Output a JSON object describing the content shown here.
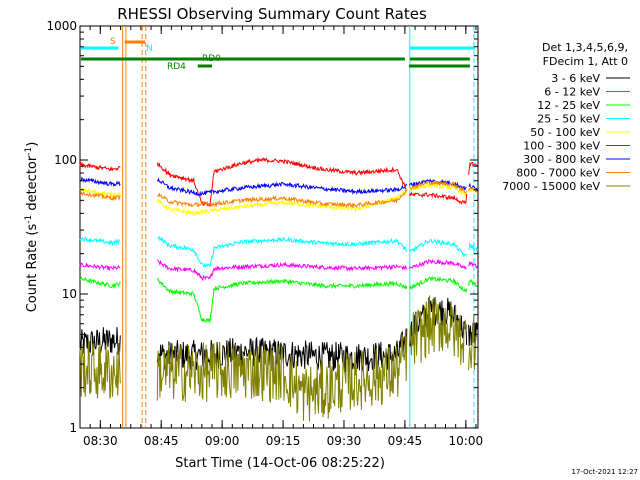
{
  "chart_data": {
    "type": "line",
    "title": "RHESSI Observing Summary Count Rates",
    "xlabel": "Start Time (14-Oct-06 08:25:22)",
    "ylabel_main": "Count Rate (s",
    "ylabel_sup": "-1",
    "ylabel_tail": " detector",
    "ylabel_end": ")",
    "yscale": "log",
    "ylim": [
      1,
      1000
    ],
    "xlim_minutes": [
      0,
      98
    ],
    "y_ticks": [
      {
        "value": 1,
        "label": "1"
      },
      {
        "value": 10,
        "label": "10"
      },
      {
        "value": 100,
        "label": "100"
      },
      {
        "value": 1000,
        "label": "1000"
      }
    ],
    "x_ticks": [
      {
        "minutes": 5,
        "label": "08:30"
      },
      {
        "minutes": 20,
        "label": "08:45"
      },
      {
        "minutes": 35,
        "label": "09:00"
      },
      {
        "minutes": 50,
        "label": "09:15"
      },
      {
        "minutes": 65,
        "label": "09:30"
      },
      {
        "minutes": 80,
        "label": "09:45"
      },
      {
        "minutes": 95,
        "label": "10:00"
      }
    ],
    "legend_header": [
      "Det 1,3,4,5,6,9,",
      "FDecim 1, Att 0"
    ],
    "legend_position": "right",
    "series": [
      {
        "name": "3 - 6 keV",
        "color": "#000000",
        "values": [
          [
            0,
            4.2
          ],
          [
            8,
            4.5
          ],
          [
            10,
            4.5
          ],
          [
            18,
            4.8
          ],
          [
            19,
            4.0
          ],
          [
            20,
            3.5
          ],
          [
            30,
            3.5
          ],
          [
            40,
            3.7
          ],
          [
            50,
            3.6
          ],
          [
            60,
            3.4
          ],
          [
            70,
            3.4
          ],
          [
            78,
            3.5
          ],
          [
            82,
            5.5
          ],
          [
            86,
            7.5
          ],
          [
            90,
            7.5
          ],
          [
            93,
            6.5
          ],
          [
            95,
            5.0
          ],
          [
            98,
            5.0
          ]
        ]
      },
      {
        "name": "6 - 12 keV",
        "color": "#ff00ff",
        "values": [
          [
            0,
            16.5
          ],
          [
            8,
            15.5
          ],
          [
            10,
            15.8
          ],
          [
            18,
            19.0
          ],
          [
            19,
            17.5
          ],
          [
            22,
            15.5
          ],
          [
            28,
            15.0
          ],
          [
            30,
            13.2
          ],
          [
            32,
            13.0
          ],
          [
            33,
            15.5
          ],
          [
            40,
            16.0
          ],
          [
            50,
            16.5
          ],
          [
            60,
            15.8
          ],
          [
            68,
            15.5
          ],
          [
            78,
            16.0
          ],
          [
            81,
            15.5
          ],
          [
            86,
            17.5
          ],
          [
            92,
            17.0
          ],
          [
            95,
            15.5
          ],
          [
            96,
            17.0
          ],
          [
            98,
            16.0
          ]
        ]
      },
      {
        "name": "12 - 25 keV",
        "color": "#00ff00",
        "values": [
          [
            0,
            13.0
          ],
          [
            8,
            11.5
          ],
          [
            10,
            12.0
          ],
          [
            18,
            15.0
          ],
          [
            19,
            13.0
          ],
          [
            22,
            10.5
          ],
          [
            28,
            10.0
          ],
          [
            30,
            6.5
          ],
          [
            32,
            6.3
          ],
          [
            33,
            11.0
          ],
          [
            40,
            12.0
          ],
          [
            50,
            12.5
          ],
          [
            60,
            11.5
          ],
          [
            68,
            11.5
          ],
          [
            78,
            12.0
          ],
          [
            81,
            11.0
          ],
          [
            86,
            13.0
          ],
          [
            92,
            12.5
          ],
          [
            95,
            10.5
          ],
          [
            96,
            12.5
          ],
          [
            98,
            11.5
          ]
        ]
      },
      {
        "name": "25 - 50 keV",
        "color": "#00ffff",
        "values": [
          [
            0,
            26.0
          ],
          [
            8,
            24.0
          ],
          [
            10,
            25.0
          ],
          [
            18,
            31.0
          ],
          [
            19,
            27.0
          ],
          [
            22,
            23.0
          ],
          [
            28,
            21.5
          ],
          [
            30,
            16.5
          ],
          [
            32,
            16.0
          ],
          [
            33,
            22.0
          ],
          [
            40,
            24.5
          ],
          [
            50,
            25.5
          ],
          [
            60,
            24.0
          ],
          [
            68,
            23.5
          ],
          [
            78,
            25.0
          ],
          [
            81,
            20.5
          ],
          [
            86,
            25.0
          ],
          [
            92,
            23.5
          ],
          [
            95,
            19.0
          ],
          [
            96,
            23.0
          ],
          [
            98,
            21.0
          ]
        ]
      },
      {
        "name": "50 - 100 keV",
        "color": "#ffff00",
        "values": [
          [
            0,
            60.0
          ],
          [
            8,
            55.0
          ],
          [
            10,
            56.0
          ],
          [
            18,
            75.0
          ],
          [
            19,
            50.0
          ],
          [
            22,
            43.0
          ],
          [
            28,
            40.0
          ],
          [
            30,
            41.0
          ],
          [
            33,
            42.0
          ],
          [
            40,
            45.0
          ],
          [
            50,
            48.0
          ],
          [
            60,
            45.0
          ],
          [
            68,
            43.0
          ],
          [
            78,
            52.0
          ],
          [
            81,
            60.0
          ],
          [
            86,
            65.0
          ],
          [
            92,
            62.0
          ],
          [
            95,
            55.0
          ],
          [
            96,
            60.0
          ],
          [
            98,
            57.0
          ]
        ]
      },
      {
        "name": "100 - 300 keV",
        "color": "#ff0000",
        "values": [
          [
            0,
            92.0
          ],
          [
            8,
            85.0
          ],
          [
            10,
            88.0
          ],
          [
            18,
            130.0
          ],
          [
            19,
            95.0
          ],
          [
            22,
            78.0
          ],
          [
            28,
            70.0
          ],
          [
            30,
            47.0
          ],
          [
            32,
            46.0
          ],
          [
            33,
            82.0
          ],
          [
            40,
            95.0
          ],
          [
            45,
            100.0
          ],
          [
            50,
            98.0
          ],
          [
            60,
            85.0
          ],
          [
            68,
            80.0
          ],
          [
            78,
            85.0
          ],
          [
            81,
            55.0
          ],
          [
            86,
            55.0
          ],
          [
            92,
            52.0
          ],
          [
            95,
            47.0
          ],
          [
            96,
            95.0
          ],
          [
            98,
            90.0
          ]
        ]
      },
      {
        "name": "300 - 800 keV",
        "color": "#0000ff",
        "values": [
          [
            0,
            72.0
          ],
          [
            8,
            66.0
          ],
          [
            10,
            67.0
          ],
          [
            18,
            85.0
          ],
          [
            19,
            72.0
          ],
          [
            22,
            62.0
          ],
          [
            28,
            57.0
          ],
          [
            30,
            56.0
          ],
          [
            33,
            58.0
          ],
          [
            40,
            62.0
          ],
          [
            50,
            66.0
          ],
          [
            60,
            61.0
          ],
          [
            68,
            58.0
          ],
          [
            78,
            60.0
          ],
          [
            81,
            65.0
          ],
          [
            86,
            70.0
          ],
          [
            92,
            67.0
          ],
          [
            95,
            61.0
          ],
          [
            96,
            64.0
          ],
          [
            98,
            60.0
          ]
        ]
      },
      {
        "name": "800 - 7000 keV",
        "color": "#ff8000",
        "values": [
          [
            0,
            57.0
          ],
          [
            8,
            52.0
          ],
          [
            10,
            53.0
          ],
          [
            18,
            65.0
          ],
          [
            19,
            56.0
          ],
          [
            22,
            49.0
          ],
          [
            28,
            46.0
          ],
          [
            30,
            47.0
          ],
          [
            33,
            47.0
          ],
          [
            40,
            50.0
          ],
          [
            50,
            52.0
          ],
          [
            60,
            47.0
          ],
          [
            68,
            46.0
          ],
          [
            78,
            50.0
          ],
          [
            81,
            62.0
          ],
          [
            86,
            68.0
          ],
          [
            92,
            66.0
          ],
          [
            95,
            58.0
          ],
          [
            96,
            62.0
          ],
          [
            98,
            58.0
          ]
        ]
      },
      {
        "name": "7000 - 15000 keV",
        "color": "#808000",
        "values": [
          [
            0,
            2.8
          ],
          [
            8,
            2.6
          ],
          [
            10,
            2.7
          ],
          [
            18,
            2.8
          ],
          [
            19,
            2.6
          ],
          [
            20,
            2.6
          ],
          [
            30,
            2.6
          ],
          [
            40,
            2.7
          ],
          [
            50,
            2.6
          ],
          [
            55,
            1.8
          ],
          [
            60,
            1.9
          ],
          [
            65,
            2.2
          ],
          [
            70,
            2.3
          ],
          [
            78,
            2.6
          ],
          [
            82,
            4.5
          ],
          [
            86,
            5.8
          ],
          [
            90,
            6.0
          ],
          [
            93,
            5.0
          ],
          [
            95,
            4.5
          ],
          [
            98,
            4.5
          ]
        ]
      }
    ],
    "gaps": [
      [
        10.0,
        19.0
      ],
      [
        80.5,
        81.0
      ],
      [
        95.2,
        95.6
      ]
    ],
    "annotations": {
      "s_label": "S",
      "n_label": "N",
      "rd0_label": "RD0",
      "rd4_label": "RD4"
    },
    "status_colors": {
      "saa": "#ff8000",
      "night": "#00ffff",
      "decim": "#007f00"
    },
    "status_bars": {
      "s_bar": [
        [
          11.0,
          16.0
        ]
      ],
      "n_bar": [
        [
          0,
          9.5
        ],
        [
          81.0,
          97.2
        ]
      ],
      "rd0_bar": [
        [
          0,
          80.0
        ],
        [
          81.0,
          96.0
        ],
        [
          97.5,
          98
        ]
      ],
      "rd4_bar": [
        [
          29.0,
          32.5
        ],
        [
          81.0,
          96.0
        ]
      ],
      "saa_lines": [
        10.5,
        11.3
      ],
      "saa_dashed": [
        15.3,
        16.2
      ],
      "night_lines": [
        81.2
      ],
      "night_dashed": [
        97.0
      ]
    },
    "footer_date": "17-Oct-2021 12:27"
  }
}
